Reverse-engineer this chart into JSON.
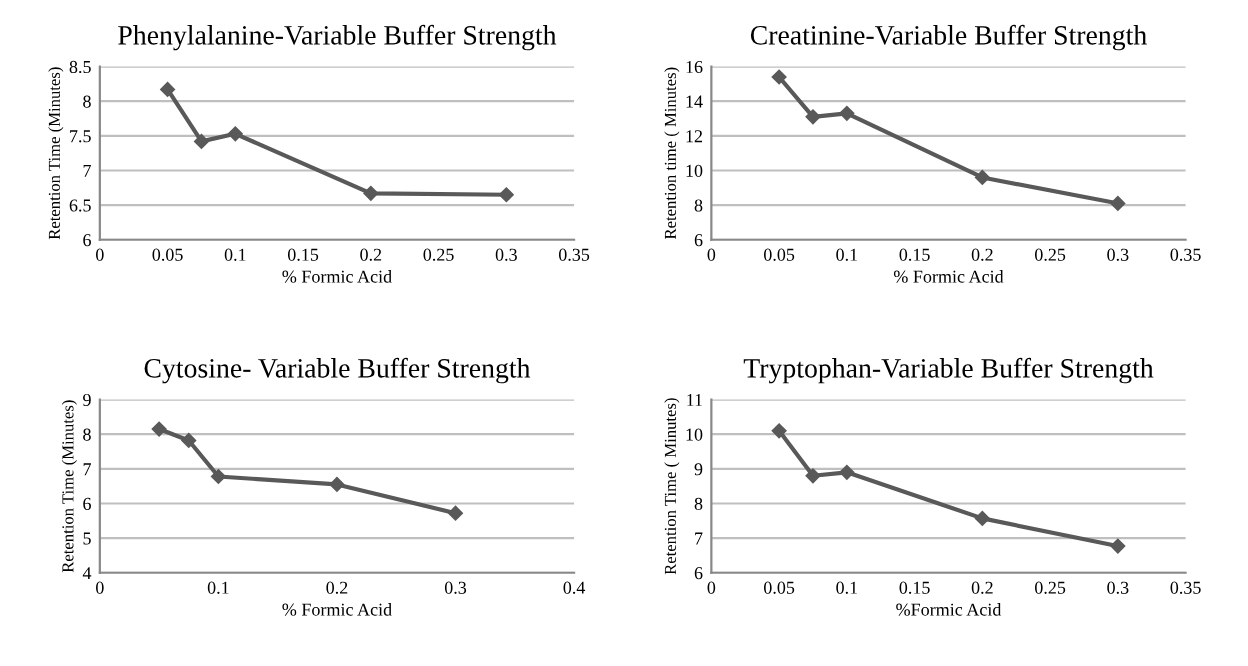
{
  "chart_data": [
    {
      "type": "line",
      "title": "Phenylalanine-Variable Buffer Strength",
      "xlabel": "% Formic Acid",
      "ylabel": "Retention Time (Minutes)",
      "x": [
        0.05,
        0.075,
        0.1,
        0.2,
        0.3
      ],
      "series": [
        {
          "color": "#595959",
          "values": [
            8.17,
            7.42,
            7.53,
            6.67,
            6.65
          ]
        }
      ],
      "xlim": [
        0,
        0.35
      ],
      "xticks": [
        0,
        0.05,
        0.1,
        0.15,
        0.2,
        0.25,
        0.3,
        0.35
      ],
      "ylim": [
        6,
        8.5
      ],
      "yticks": [
        6,
        6.5,
        7,
        7.5,
        8,
        8.5
      ],
      "grid": "y",
      "marker": "diamond",
      "line_style": "solid",
      "legend": false
    },
    {
      "type": "line",
      "title": "Creatinine-Variable Buffer Strength",
      "xlabel": "% Formic Acid",
      "ylabel": "Retention time ( Minutes)",
      "x": [
        0.05,
        0.075,
        0.1,
        0.2,
        0.3
      ],
      "series": [
        {
          "color": "#595959",
          "values": [
            15.4,
            13.1,
            13.3,
            9.6,
            8.1
          ]
        }
      ],
      "xlim": [
        0,
        0.35
      ],
      "xticks": [
        0,
        0.05,
        0.1,
        0.15,
        0.2,
        0.25,
        0.3,
        0.35
      ],
      "ylim": [
        6,
        16
      ],
      "yticks": [
        6,
        8,
        10,
        12,
        14,
        16
      ],
      "grid": "y",
      "marker": "diamond",
      "line_style": "solid",
      "legend": false
    },
    {
      "type": "line",
      "title": "Cytosine- Variable Buffer Strength",
      "xlabel": "% Formic Acid",
      "ylabel": "Retention Time (Minutes)",
      "x": [
        0.05,
        0.075,
        0.1,
        0.2,
        0.3
      ],
      "series": [
        {
          "color": "#595959",
          "values": [
            8.15,
            7.82,
            6.78,
            6.55,
            5.72
          ]
        }
      ],
      "xlim": [
        0,
        0.4
      ],
      "xticks": [
        0,
        0.1,
        0.2,
        0.3,
        0.4
      ],
      "ylim": [
        4,
        9
      ],
      "yticks": [
        4,
        5,
        6,
        7,
        8,
        9
      ],
      "grid": "y",
      "marker": "diamond",
      "line_style": "solid",
      "legend": false
    },
    {
      "type": "line",
      "title": "Tryptophan-Variable Buffer Strength",
      "xlabel": "%Formic Acid",
      "ylabel": "Retention Time ( Minutes)",
      "x": [
        0.05,
        0.075,
        0.1,
        0.2,
        0.3
      ],
      "series": [
        {
          "color": "#595959",
          "values": [
            10.1,
            8.8,
            8.9,
            7.57,
            6.77
          ]
        }
      ],
      "xlim": [
        0,
        0.35
      ],
      "xticks": [
        0,
        0.05,
        0.1,
        0.15,
        0.2,
        0.25,
        0.3,
        0.35
      ],
      "ylim": [
        6,
        11
      ],
      "yticks": [
        6,
        7,
        8,
        9,
        10,
        11
      ],
      "grid": "y",
      "marker": "diamond",
      "line_style": "solid",
      "legend": false
    }
  ]
}
